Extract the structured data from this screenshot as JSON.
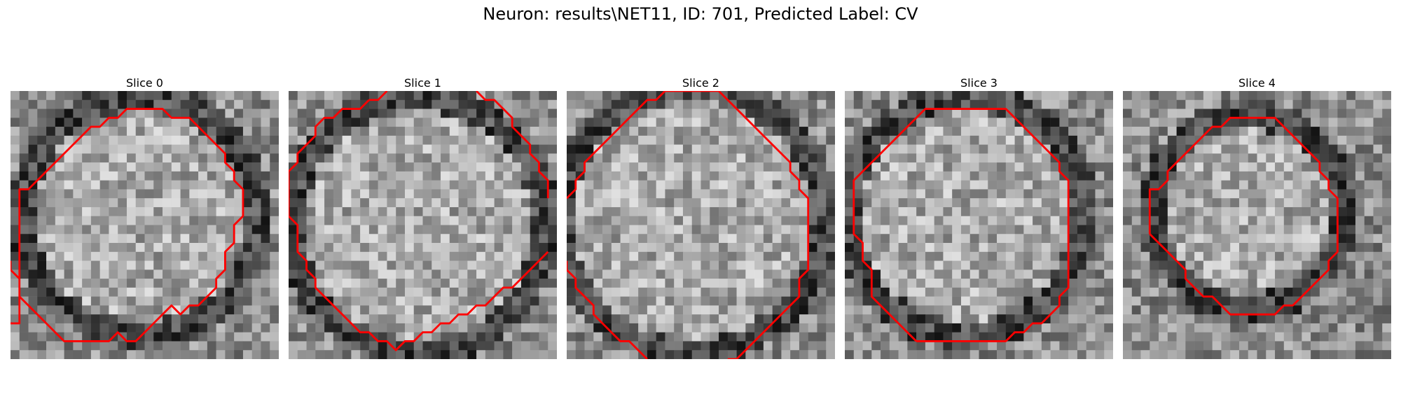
{
  "figure": {
    "title": "Neuron: results\\NET11, ID: 701, Predicted Label: CV"
  },
  "colors": {
    "contour": "#ff0000",
    "background": "#ffffff"
  },
  "panels": [
    {
      "title": "Slice 0",
      "contour_segments": [
        [
          [
            0,
            26
          ],
          [
            1,
            26
          ],
          [
            1,
            25
          ],
          [
            1,
            11
          ],
          [
            2,
            11
          ],
          [
            3,
            10
          ],
          [
            4,
            9
          ],
          [
            5,
            8
          ],
          [
            6,
            7
          ],
          [
            7,
            6
          ],
          [
            8,
            5
          ],
          [
            9,
            4
          ],
          [
            10,
            4
          ],
          [
            11,
            3
          ],
          [
            12,
            3
          ],
          [
            13,
            2
          ],
          [
            14,
            2
          ],
          [
            15,
            2
          ],
          [
            16,
            2
          ],
          [
            17,
            2
          ],
          [
            18,
            3
          ],
          [
            19,
            3
          ],
          [
            20,
            3
          ],
          [
            21,
            4
          ],
          [
            22,
            5
          ],
          [
            23,
            6
          ],
          [
            24,
            7
          ],
          [
            24,
            8
          ],
          [
            25,
            9
          ],
          [
            25,
            10
          ],
          [
            26,
            11
          ],
          [
            26,
            12
          ],
          [
            26,
            13
          ],
          [
            26,
            14
          ],
          [
            25,
            15
          ],
          [
            25,
            16
          ],
          [
            25,
            17
          ],
          [
            24,
            18
          ],
          [
            24,
            19
          ],
          [
            24,
            20
          ],
          [
            23,
            21
          ],
          [
            23,
            22
          ],
          [
            22,
            23
          ],
          [
            21,
            24
          ],
          [
            20,
            24
          ],
          [
            19,
            25
          ],
          [
            18,
            24
          ],
          [
            17,
            25
          ],
          [
            16,
            26
          ],
          [
            15,
            27
          ],
          [
            14,
            28
          ],
          [
            13,
            28
          ],
          [
            12,
            27
          ],
          [
            11,
            28
          ],
          [
            10,
            28
          ],
          [
            9,
            28
          ],
          [
            8,
            28
          ],
          [
            7,
            28
          ],
          [
            6,
            28
          ],
          [
            5,
            27
          ],
          [
            4,
            26
          ],
          [
            3,
            25
          ],
          [
            2,
            24
          ],
          [
            1,
            23
          ],
          [
            1,
            22
          ],
          [
            1,
            21
          ],
          [
            0,
            20
          ],
          [
            0,
            19
          ]
        ]
      ]
    },
    {
      "title": "Slice 1",
      "contour_segments": [
        [
          [
            9,
            1
          ],
          [
            10,
            1
          ],
          [
            11,
            0
          ]
        ],
        [
          [
            21,
            0
          ],
          [
            22,
            1
          ],
          [
            23,
            1
          ],
          [
            24,
            2
          ],
          [
            25,
            3
          ],
          [
            25,
            4
          ],
          [
            26,
            5
          ],
          [
            27,
            6
          ],
          [
            27,
            7
          ],
          [
            28,
            8
          ],
          [
            28,
            9
          ],
          [
            29,
            10
          ],
          [
            29,
            11
          ],
          [
            29,
            12
          ]
        ],
        [
          [
            29,
            18
          ],
          [
            28,
            19
          ],
          [
            27,
            20
          ],
          [
            26,
            21
          ],
          [
            25,
            22
          ],
          [
            24,
            22
          ],
          [
            23,
            23
          ],
          [
            22,
            24
          ],
          [
            21,
            24
          ],
          [
            20,
            25
          ],
          [
            19,
            25
          ],
          [
            18,
            26
          ],
          [
            17,
            26
          ],
          [
            16,
            27
          ],
          [
            15,
            27
          ],
          [
            14,
            28
          ],
          [
            13,
            28
          ],
          [
            12,
            29
          ],
          [
            11,
            28
          ],
          [
            10,
            28
          ],
          [
            9,
            27
          ],
          [
            8,
            27
          ],
          [
            7,
            26
          ],
          [
            6,
            25
          ],
          [
            5,
            24
          ],
          [
            4,
            23
          ],
          [
            3,
            22
          ],
          [
            3,
            21
          ],
          [
            2,
            20
          ],
          [
            2,
            19
          ],
          [
            1,
            18
          ],
          [
            1,
            17
          ],
          [
            1,
            16
          ],
          [
            1,
            15
          ],
          [
            0,
            14
          ],
          [
            0,
            13
          ],
          [
            0,
            12
          ],
          [
            0,
            11
          ],
          [
            0,
            10
          ],
          [
            0,
            9
          ],
          [
            1,
            8
          ],
          [
            1,
            7
          ],
          [
            2,
            6
          ],
          [
            3,
            5
          ],
          [
            3,
            4
          ],
          [
            4,
            3
          ],
          [
            5,
            3
          ],
          [
            6,
            2
          ],
          [
            7,
            2
          ],
          [
            8,
            2
          ],
          [
            9,
            1
          ]
        ]
      ]
    },
    {
      "title": "Slice 2",
      "contour_segments": [
        [
          [
            9,
            30
          ],
          [
            8,
            29
          ],
          [
            7,
            28
          ],
          [
            6,
            28
          ],
          [
            5,
            27
          ],
          [
            4,
            26
          ],
          [
            3,
            25
          ],
          [
            3,
            24
          ],
          [
            2,
            23
          ],
          [
            1,
            22
          ],
          [
            1,
            21
          ],
          [
            0,
            20
          ],
          [
            0,
            19
          ]
        ],
        [
          [
            0,
            12
          ],
          [
            1,
            11
          ],
          [
            1,
            10
          ],
          [
            2,
            9
          ],
          [
            2,
            8
          ],
          [
            3,
            7
          ],
          [
            4,
            6
          ],
          [
            5,
            5
          ],
          [
            6,
            4
          ],
          [
            7,
            3
          ],
          [
            8,
            2
          ],
          [
            9,
            1
          ],
          [
            10,
            1
          ],
          [
            11,
            0
          ],
          [
            12,
            0
          ],
          [
            13,
            0
          ],
          [
            14,
            0
          ],
          [
            15,
            0
          ],
          [
            16,
            0
          ],
          [
            17,
            0
          ],
          [
            18,
            1
          ],
          [
            19,
            2
          ],
          [
            20,
            3
          ],
          [
            21,
            4
          ],
          [
            22,
            5
          ],
          [
            23,
            6
          ],
          [
            24,
            7
          ],
          [
            25,
            8
          ],
          [
            25,
            9
          ],
          [
            26,
            10
          ],
          [
            26,
            11
          ],
          [
            27,
            12
          ],
          [
            27,
            13
          ],
          [
            27,
            14
          ],
          [
            27,
            15
          ],
          [
            27,
            16
          ],
          [
            27,
            17
          ],
          [
            27,
            18
          ],
          [
            27,
            19
          ],
          [
            27,
            20
          ],
          [
            26,
            21
          ],
          [
            26,
            22
          ],
          [
            26,
            23
          ],
          [
            25,
            24
          ],
          [
            24,
            25
          ],
          [
            23,
            26
          ],
          [
            22,
            27
          ],
          [
            21,
            28
          ],
          [
            20,
            29
          ],
          [
            19,
            30
          ],
          [
            18,
            30
          ]
        ]
      ]
    },
    {
      "title": "Slice 3",
      "contour_segments": [
        [
          [
            8,
            28
          ],
          [
            9,
            28
          ],
          [
            10,
            28
          ],
          [
            11,
            28
          ],
          [
            12,
            28
          ],
          [
            13,
            28
          ],
          [
            14,
            28
          ],
          [
            15,
            28
          ],
          [
            16,
            28
          ],
          [
            17,
            28
          ],
          [
            18,
            28
          ],
          [
            19,
            27
          ],
          [
            20,
            27
          ],
          [
            21,
            26
          ],
          [
            22,
            26
          ],
          [
            23,
            25
          ],
          [
            24,
            24
          ],
          [
            24,
            23
          ],
          [
            25,
            22
          ],
          [
            25,
            21
          ],
          [
            25,
            20
          ],
          [
            25,
            19
          ],
          [
            25,
            18
          ],
          [
            25,
            17
          ],
          [
            25,
            16
          ],
          [
            25,
            15
          ],
          [
            25,
            14
          ],
          [
            25,
            13
          ],
          [
            25,
            12
          ],
          [
            25,
            11
          ],
          [
            25,
            10
          ],
          [
            24,
            9
          ],
          [
            24,
            8
          ],
          [
            23,
            7
          ],
          [
            22,
            6
          ],
          [
            21,
            5
          ],
          [
            20,
            4
          ],
          [
            19,
            3
          ],
          [
            18,
            2
          ],
          [
            17,
            2
          ],
          [
            16,
            2
          ],
          [
            15,
            2
          ],
          [
            14,
            2
          ],
          [
            13,
            2
          ],
          [
            12,
            2
          ],
          [
            11,
            2
          ],
          [
            10,
            2
          ],
          [
            9,
            2
          ],
          [
            8,
            3
          ],
          [
            7,
            4
          ],
          [
            6,
            5
          ],
          [
            5,
            6
          ],
          [
            4,
            7
          ],
          [
            3,
            8
          ],
          [
            2,
            9
          ],
          [
            1,
            10
          ],
          [
            1,
            11
          ],
          [
            1,
            12
          ],
          [
            1,
            13
          ],
          [
            1,
            14
          ],
          [
            1,
            15
          ],
          [
            1,
            16
          ],
          [
            2,
            17
          ],
          [
            2,
            18
          ],
          [
            2,
            19
          ],
          [
            3,
            20
          ],
          [
            3,
            21
          ],
          [
            3,
            22
          ],
          [
            3,
            23
          ],
          [
            4,
            24
          ],
          [
            5,
            25
          ],
          [
            6,
            26
          ],
          [
            7,
            27
          ],
          [
            8,
            28
          ]
        ]
      ]
    },
    {
      "title": "Slice 4",
      "contour_segments": [
        [
          [
            3,
            16
          ],
          [
            4,
            17
          ],
          [
            5,
            18
          ],
          [
            6,
            19
          ],
          [
            7,
            20
          ],
          [
            7,
            21
          ],
          [
            8,
            22
          ],
          [
            9,
            23
          ],
          [
            10,
            23
          ],
          [
            11,
            24
          ],
          [
            12,
            25
          ],
          [
            13,
            25
          ],
          [
            14,
            25
          ],
          [
            15,
            25
          ],
          [
            16,
            25
          ],
          [
            17,
            25
          ],
          [
            18,
            24
          ],
          [
            19,
            24
          ],
          [
            20,
            23
          ],
          [
            21,
            22
          ],
          [
            22,
            21
          ],
          [
            23,
            20
          ],
          [
            23,
            19
          ],
          [
            24,
            18
          ],
          [
            24,
            17
          ],
          [
            24,
            16
          ],
          [
            24,
            15
          ],
          [
            24,
            14
          ],
          [
            24,
            13
          ],
          [
            24,
            12
          ],
          [
            23,
            11
          ],
          [
            23,
            10
          ],
          [
            22,
            9
          ],
          [
            22,
            8
          ],
          [
            21,
            7
          ],
          [
            20,
            6
          ],
          [
            19,
            5
          ],
          [
            18,
            4
          ],
          [
            17,
            3
          ],
          [
            16,
            3
          ],
          [
            15,
            3
          ],
          [
            14,
            3
          ],
          [
            13,
            3
          ],
          [
            12,
            3
          ],
          [
            11,
            4
          ],
          [
            10,
            4
          ],
          [
            9,
            5
          ],
          [
            8,
            6
          ],
          [
            7,
            7
          ],
          [
            6,
            8
          ],
          [
            5,
            9
          ],
          [
            5,
            10
          ],
          [
            4,
            11
          ],
          [
            3,
            11
          ],
          [
            3,
            12
          ],
          [
            3,
            13
          ],
          [
            3,
            14
          ],
          [
            3,
            15
          ],
          [
            3,
            16
          ]
        ]
      ]
    }
  ]
}
